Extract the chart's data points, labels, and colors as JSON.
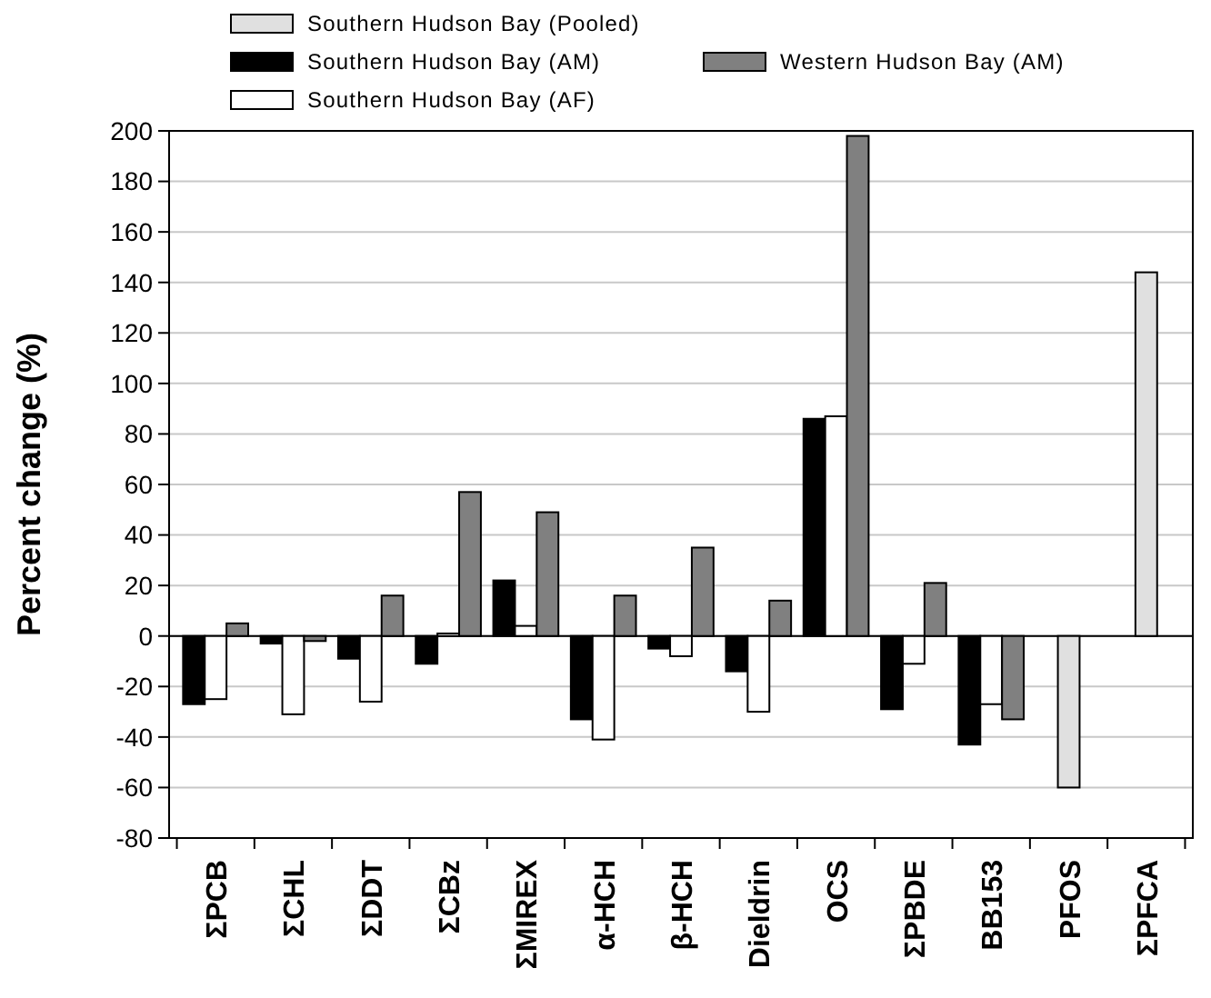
{
  "chart_data": {
    "type": "bar",
    "ylabel": "Percent change (%)",
    "categories": [
      "ΣPCB",
      "ΣCHL",
      "ΣDDT",
      "ΣCBz",
      "ΣMIREX",
      "α-HCH",
      "β-HCH",
      "Dieldrin",
      "OCS",
      "ΣPBDE",
      "BB153",
      "PFOS",
      "ΣPFCA"
    ],
    "series": [
      {
        "name": "Southern Hudson Bay (Pooled)",
        "color": "#e0e0e0",
        "values": [
          null,
          null,
          null,
          null,
          null,
          null,
          null,
          null,
          null,
          null,
          null,
          -60,
          144
        ]
      },
      {
        "name": "Southern Hudson Bay (AM)",
        "color": "#000000",
        "values": [
          -27,
          -3,
          -9,
          -11,
          22,
          -33,
          -5,
          -14,
          86,
          -29,
          -43,
          null,
          null
        ]
      },
      {
        "name": "Southern Hudson Bay (AF)",
        "color": "#ffffff",
        "values": [
          -25,
          -31,
          -26,
          1,
          4,
          -41,
          -8,
          -30,
          87,
          -11,
          -27,
          null,
          null
        ]
      },
      {
        "name": "Western Hudson Bay (AM)",
        "color": "#808080",
        "values": [
          5,
          -2,
          16,
          57,
          49,
          16,
          35,
          14,
          198,
          21,
          -33,
          null,
          null
        ]
      }
    ],
    "ylim": [
      -80,
      200
    ],
    "yticks": [
      -80,
      -60,
      -40,
      -20,
      0,
      20,
      40,
      60,
      80,
      100,
      120,
      140,
      160,
      180,
      200
    ],
    "grid": "y",
    "legend": "top"
  }
}
